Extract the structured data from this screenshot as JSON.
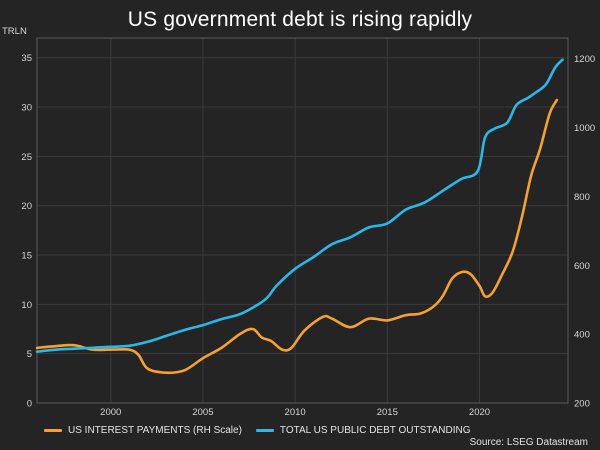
{
  "chart_data": {
    "type": "line",
    "title": "US government debt is rising rapidly",
    "left_unit": "TRLN",
    "source": "Source: LSEG Datastream",
    "x_range": [
      1996,
      2024.8
    ],
    "x_ticks": [
      2000,
      2005,
      2010,
      2015,
      2020
    ],
    "left_axis": {
      "range": [
        0,
        37
      ],
      "ticks": [
        0,
        5,
        10,
        15,
        20,
        25,
        30,
        35
      ]
    },
    "right_axis": {
      "range": [
        200,
        1260
      ],
      "ticks": [
        200,
        400,
        600,
        800,
        1000,
        1200
      ]
    },
    "series": [
      {
        "name": "US INTEREST PAYMENTS (RH Scale)",
        "axis": "right",
        "color": "#f5a030",
        "x": [
          1996,
          1997,
          1998,
          1999,
          2000,
          2001,
          2001.5,
          2002,
          2003,
          2004,
          2005,
          2006,
          2007,
          2007.7,
          2008.2,
          2008.7,
          2009.3,
          2009.8,
          2010.5,
          2011.5,
          2012,
          2013,
          2014,
          2015,
          2016,
          2016.8,
          2017.5,
          2018,
          2018.5,
          2019,
          2019.5,
          2020,
          2020.3,
          2020.7,
          2021.2,
          2021.8,
          2022.3,
          2022.8,
          2023.3,
          2023.8,
          2024.2
        ],
        "values": [
          360,
          365,
          368,
          355,
          355,
          355,
          340,
          300,
          288,
          295,
          330,
          360,
          400,
          415,
          390,
          380,
          355,
          360,
          410,
          450,
          445,
          420,
          445,
          440,
          455,
          460,
          480,
          510,
          560,
          580,
          575,
          540,
          510,
          520,
          570,
          640,
          740,
          860,
          940,
          1040,
          1080
        ]
      },
      {
        "name": "TOTAL US PUBLIC DEBT OUTSTANDING",
        "axis": "left",
        "color": "#2ab8e8",
        "x": [
          1996,
          1997,
          1998,
          1999,
          2000,
          2001,
          2002,
          2003,
          2004,
          2005,
          2006,
          2007,
          2008,
          2008.5,
          2009,
          2010,
          2011,
          2012,
          2013,
          2014,
          2015,
          2016,
          2017,
          2018,
          2019,
          2019.9,
          2020.3,
          2020.8,
          2021.5,
          2022,
          2022.6,
          2023,
          2023.6,
          2024.1,
          2024.5
        ],
        "values": [
          5.2,
          5.4,
          5.5,
          5.6,
          5.7,
          5.8,
          6.2,
          6.8,
          7.4,
          7.9,
          8.5,
          9.0,
          10.0,
          10.7,
          11.9,
          13.6,
          14.8,
          16.1,
          16.8,
          17.8,
          18.2,
          19.6,
          20.3,
          21.5,
          22.7,
          23.5,
          26.9,
          27.8,
          28.4,
          30.2,
          30.9,
          31.4,
          32.3,
          34.0,
          34.8
        ]
      }
    ]
  }
}
